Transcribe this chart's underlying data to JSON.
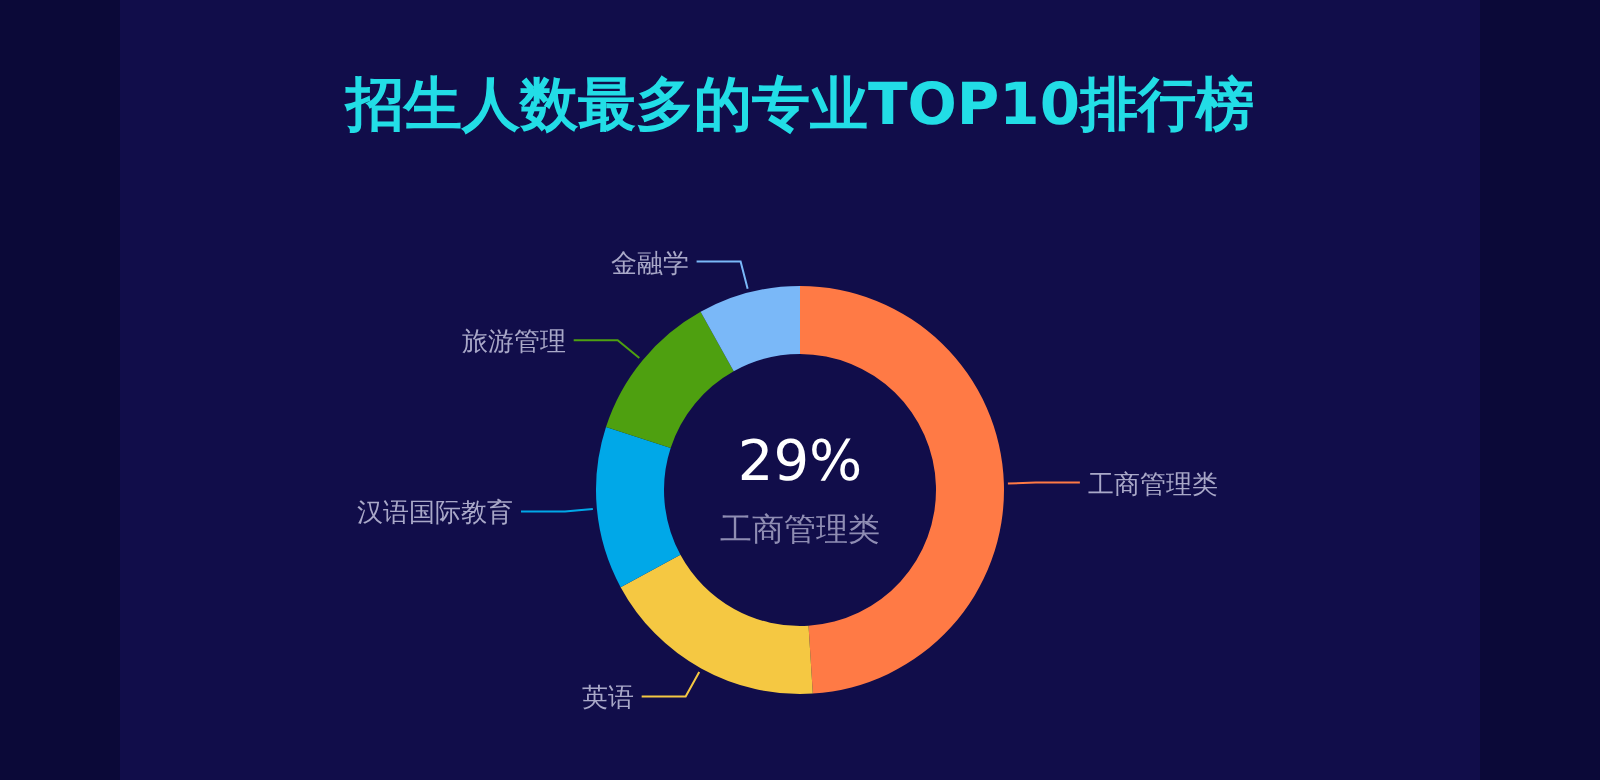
{
  "chart_data": {
    "type": "donut",
    "title": "招生人数最多的专业TOP10排行榜",
    "categories": [
      "工商管理类",
      "英语",
      "汉语国际教育",
      "旅游管理",
      "金融学"
    ],
    "values": [
      49.0,
      18.1,
      12.9,
      11.9,
      8.1
    ],
    "colors": [
      "#ff7a45",
      "#f5c842",
      "#00a8e8",
      "#4ea010",
      "#7ab8f8"
    ],
    "annotations": [
      "29%",
      "工商管理类"
    ]
  }
}
